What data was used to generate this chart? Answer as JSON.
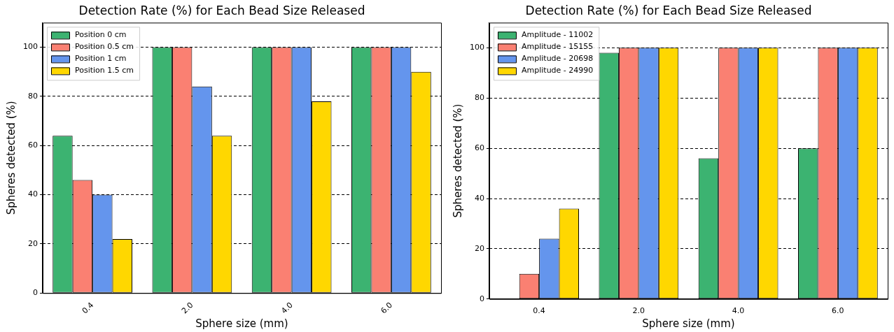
{
  "chart_data": [
    {
      "type": "bar",
      "title": "Detection Rate (%) for Each Bead Size Released",
      "xlabel": "Sphere size (mm)",
      "ylabel": "Spheres detected (%)",
      "categories": [
        "0.4",
        "2.0",
        "4.0",
        "6.0"
      ],
      "series": [
        {
          "name": "Position 0 cm",
          "color": "#3cb371",
          "values": [
            64,
            100,
            100,
            100
          ]
        },
        {
          "name": "Position 0.5 cm",
          "color": "#fa8072",
          "values": [
            46,
            100,
            100,
            100
          ]
        },
        {
          "name": "Position 1 cm",
          "color": "#6495ed",
          "values": [
            40,
            84,
            100,
            100
          ]
        },
        {
          "name": "Position 1.5 cm",
          "color": "#ffd700",
          "values": [
            22,
            64,
            78,
            90
          ]
        }
      ],
      "ylim": [
        0,
        110
      ],
      "yticks": [
        0,
        20,
        40,
        60,
        80,
        100
      ],
      "grid": "y",
      "legend": "top left"
    },
    {
      "type": "bar",
      "title": "Detection Rate (%) for Each Bead Size Released",
      "xlabel": "Sphere size (mm)",
      "ylabel": "Spheres detected (%)",
      "categories": [
        "0.4",
        "2.0",
        "4.0",
        "6.0"
      ],
      "series": [
        {
          "name": "Amplitude - 11002",
          "color": "#3cb371",
          "values": [
            0,
            98,
            56,
            60
          ]
        },
        {
          "name": "Amplitude - 15155",
          "color": "#fa8072",
          "values": [
            10,
            100,
            100,
            100
          ]
        },
        {
          "name": "Amplitude - 20698",
          "color": "#6495ed",
          "values": [
            24,
            100,
            100,
            100
          ]
        },
        {
          "name": "Amplitude - 24990",
          "color": "#ffd700",
          "values": [
            36,
            100,
            100,
            100
          ]
        }
      ],
      "ylim": [
        0,
        110
      ],
      "yticks": [
        0,
        20,
        40,
        60,
        80,
        100
      ],
      "grid": "y",
      "legend": "top left"
    }
  ]
}
